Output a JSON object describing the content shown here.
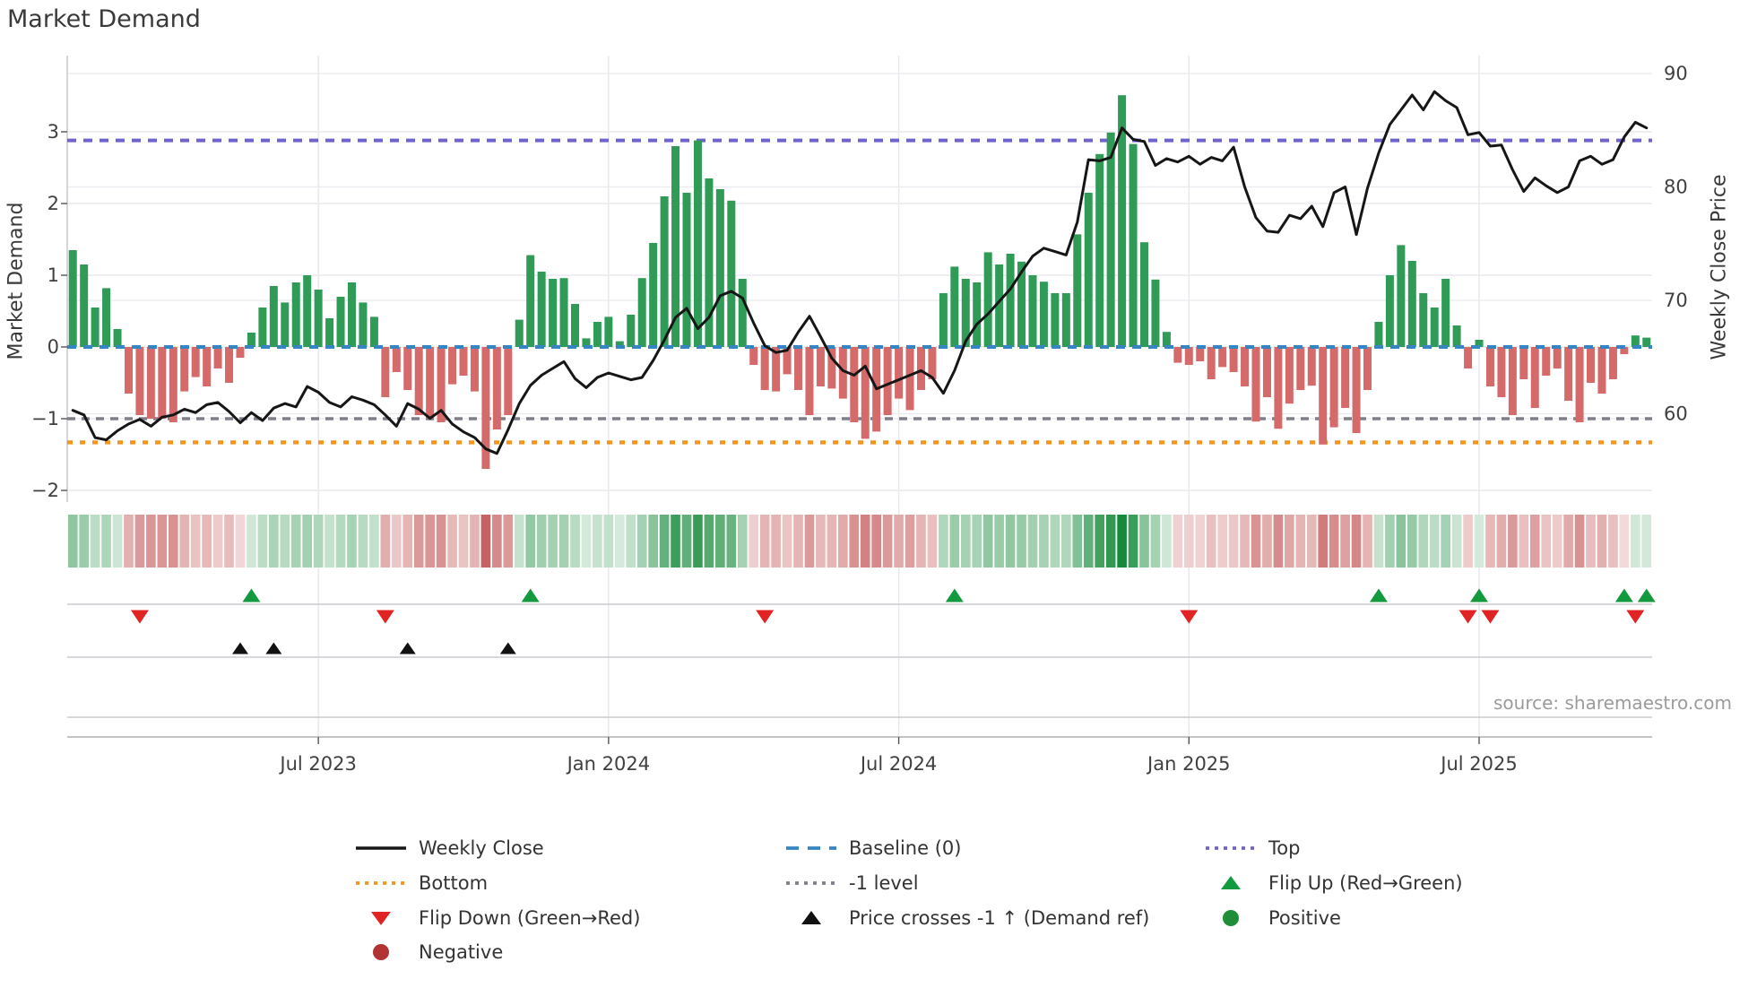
{
  "title": "Market Demand",
  "left_axis": {
    "label": "Market Demand",
    "tick_values": [
      3,
      2,
      1,
      0,
      -1,
      -2
    ],
    "tick_labels": [
      "3",
      "2",
      "1",
      "0",
      "−1",
      "−2"
    ]
  },
  "right_axis": {
    "label": "Weekly Close Price",
    "tick_values": [
      90,
      80,
      70,
      60
    ],
    "tick_labels": [
      "90",
      "80",
      "70",
      "60"
    ]
  },
  "x_axis": {
    "tick_labels": [
      "Jul 2023",
      "Jan 2024",
      "Jul 2024",
      "Jan 2025",
      "Jul 2025"
    ],
    "tick_weeks": [
      22,
      48,
      74,
      100,
      126
    ]
  },
  "source": "source: sharemaestro.com",
  "colors": {
    "bar_positive": "#2f9b57",
    "bar_negative": "#d46a6a",
    "price_line": "#161616",
    "baseline": "#3585c4",
    "top_line": "#6f63d0",
    "bottom_line": "#f5941f",
    "minus_one_line": "#7f7f8a",
    "flip_up": "#149a3e",
    "flip_down": "#e02424",
    "price_cross": "#111111",
    "positive_dot": "#1e8e38",
    "negative_dot": "#b23333",
    "grid": "#e9e9ef",
    "lane_line": "#cbcbd0",
    "axis_text": "#404040"
  },
  "legend": [
    {
      "id": "weekly-close",
      "label": "Weekly Close",
      "swatch": "line",
      "color": "#161616",
      "col": 0,
      "row": 0
    },
    {
      "id": "bottom",
      "label": "Bottom",
      "swatch": "dotted",
      "color": "#f5941f",
      "col": 0,
      "row": 1
    },
    {
      "id": "flip-down",
      "label": "Flip Down (Green→Red)",
      "swatch": "tri-down",
      "color": "#e02424",
      "col": 0,
      "row": 2
    },
    {
      "id": "negative",
      "label": "Negative",
      "swatch": "circle",
      "color": "#b23333",
      "col": 0,
      "row": 3
    },
    {
      "id": "baseline",
      "label": "Baseline (0)",
      "swatch": "dashed",
      "color": "#3585c4",
      "col": 1,
      "row": 0
    },
    {
      "id": "minus-1-level",
      "label": "-1 level",
      "swatch": "dotted",
      "color": "#7f7f8a",
      "col": 1,
      "row": 1
    },
    {
      "id": "price-crosses",
      "label": "Price crosses -1 ↑ (Demand ref)",
      "swatch": "tri-up",
      "color": "#111111",
      "col": 1,
      "row": 2
    },
    {
      "id": "top",
      "label": "Top",
      "swatch": "dotted",
      "color": "#6f63d0",
      "col": 2,
      "row": 0
    },
    {
      "id": "flip-up",
      "label": "Flip Up (Red→Green)",
      "swatch": "tri-up",
      "color": "#149a3e",
      "col": 2,
      "row": 1
    },
    {
      "id": "positive",
      "label": "Positive",
      "swatch": "circle",
      "color": "#1e8e38",
      "col": 2,
      "row": 2
    }
  ],
  "chart_data": {
    "type": "bar+line",
    "weeks": 142,
    "x_start_label": "early 2023 (weekly)",
    "ref_lines": {
      "baseline": 0,
      "minus_one": -1,
      "top": 2.88,
      "bottom": -1.33
    },
    "left_ylim": [
      -2.2,
      4.07
    ],
    "right_ylim": [
      52.1,
      91.6
    ],
    "series": [
      {
        "name": "Market Demand",
        "type": "bar",
        "axis": "left",
        "values": [
          1.35,
          1.15,
          0.55,
          0.82,
          0.25,
          -0.65,
          -0.95,
          -1.0,
          -1.0,
          -1.05,
          -0.62,
          -0.42,
          -0.55,
          -0.3,
          -0.5,
          -0.15,
          0.2,
          0.55,
          0.85,
          0.62,
          0.9,
          1.0,
          0.8,
          0.4,
          0.7,
          0.9,
          0.62,
          0.42,
          -0.7,
          -0.35,
          -0.6,
          -0.95,
          -1.0,
          -1.05,
          -0.52,
          -0.4,
          -0.62,
          -1.7,
          -1.15,
          -0.95,
          0.38,
          1.28,
          1.05,
          0.95,
          0.96,
          0.6,
          0.12,
          0.35,
          0.42,
          0.08,
          0.45,
          0.96,
          1.45,
          2.1,
          2.8,
          2.15,
          2.88,
          2.35,
          2.2,
          2.04,
          0.95,
          -0.25,
          -0.6,
          -0.62,
          -0.38,
          -0.6,
          -0.95,
          -0.55,
          -0.58,
          -0.72,
          -1.05,
          -1.28,
          -1.18,
          -0.95,
          -0.72,
          -0.88,
          -0.6,
          -0.45,
          0.75,
          1.12,
          0.95,
          0.9,
          1.32,
          1.15,
          1.3,
          1.19,
          1.0,
          0.91,
          0.75,
          0.75,
          1.57,
          2.15,
          2.69,
          2.99,
          3.51,
          2.83,
          1.46,
          0.94,
          0.21,
          -0.22,
          -0.25,
          -0.2,
          -0.45,
          -0.28,
          -0.35,
          -0.55,
          -1.04,
          -0.7,
          -1.14,
          -0.79,
          -0.6,
          -0.54,
          -1.36,
          -1.12,
          -0.85,
          -1.2,
          -0.6,
          0.35,
          1.0,
          1.42,
          1.2,
          0.75,
          0.55,
          0.95,
          0.3,
          -0.3,
          0.1,
          -0.55,
          -0.7,
          -0.95,
          -0.45,
          -0.85,
          -0.4,
          -0.3,
          -0.75,
          -1.05,
          -0.5,
          -0.65,
          -0.45,
          -0.1,
          0.16,
          0.13
        ]
      },
      {
        "name": "Weekly Close",
        "type": "line",
        "axis": "right",
        "values": [
          60.3,
          59.9,
          57.9,
          57.7,
          58.5,
          59.1,
          59.5,
          58.9,
          59.7,
          59.9,
          60.4,
          60.1,
          60.8,
          61.0,
          60.2,
          59.2,
          60.1,
          59.4,
          60.5,
          60.9,
          60.6,
          62.4,
          61.9,
          61.0,
          60.6,
          61.5,
          61.2,
          60.8,
          59.9,
          58.9,
          60.9,
          60.4,
          59.6,
          60.3,
          59.1,
          58.4,
          57.9,
          56.9,
          56.5,
          58.6,
          60.9,
          62.5,
          63.4,
          64.0,
          64.6,
          63.1,
          62.3,
          63.2,
          63.6,
          63.3,
          63.0,
          63.2,
          64.7,
          66.5,
          68.5,
          69.3,
          67.5,
          68.5,
          70.4,
          70.8,
          70.2,
          68.0,
          66.0,
          65.4,
          65.6,
          67.2,
          68.6,
          66.8,
          64.9,
          63.8,
          63.4,
          64.2,
          62.2,
          62.6,
          63.0,
          63.4,
          63.8,
          63.2,
          61.8,
          63.8,
          66.4,
          67.9,
          68.8,
          69.9,
          71.0,
          72.5,
          73.9,
          74.6,
          74.3,
          74.0,
          76.9,
          82.4,
          82.3,
          82.6,
          85.2,
          84.2,
          84.0,
          81.9,
          82.5,
          82.2,
          82.7,
          82.0,
          82.6,
          82.3,
          83.5,
          80.0,
          77.3,
          76.1,
          76.0,
          77.5,
          77.2,
          78.3,
          76.5,
          79.5,
          80.0,
          75.8,
          79.9,
          83.0,
          85.5,
          86.8,
          88.1,
          86.8,
          88.4,
          87.6,
          87.0,
          84.6,
          84.8,
          83.6,
          83.7,
          81.5,
          79.6,
          80.8,
          80.1,
          79.5,
          80.0,
          82.3,
          82.7,
          82.0,
          82.4,
          84.4,
          85.7,
          85.2
        ]
      }
    ],
    "markers": {
      "flip_up_weeks": [
        16,
        41,
        79,
        117,
        126,
        139,
        141
      ],
      "flip_down_weeks": [
        6,
        28,
        62,
        100,
        125,
        127,
        140
      ],
      "price_cross_weeks": [
        15,
        18,
        30,
        39
      ]
    },
    "heatmap": "one cell per week, green intensity for positive demand, red/pink intensity for negative demand"
  }
}
